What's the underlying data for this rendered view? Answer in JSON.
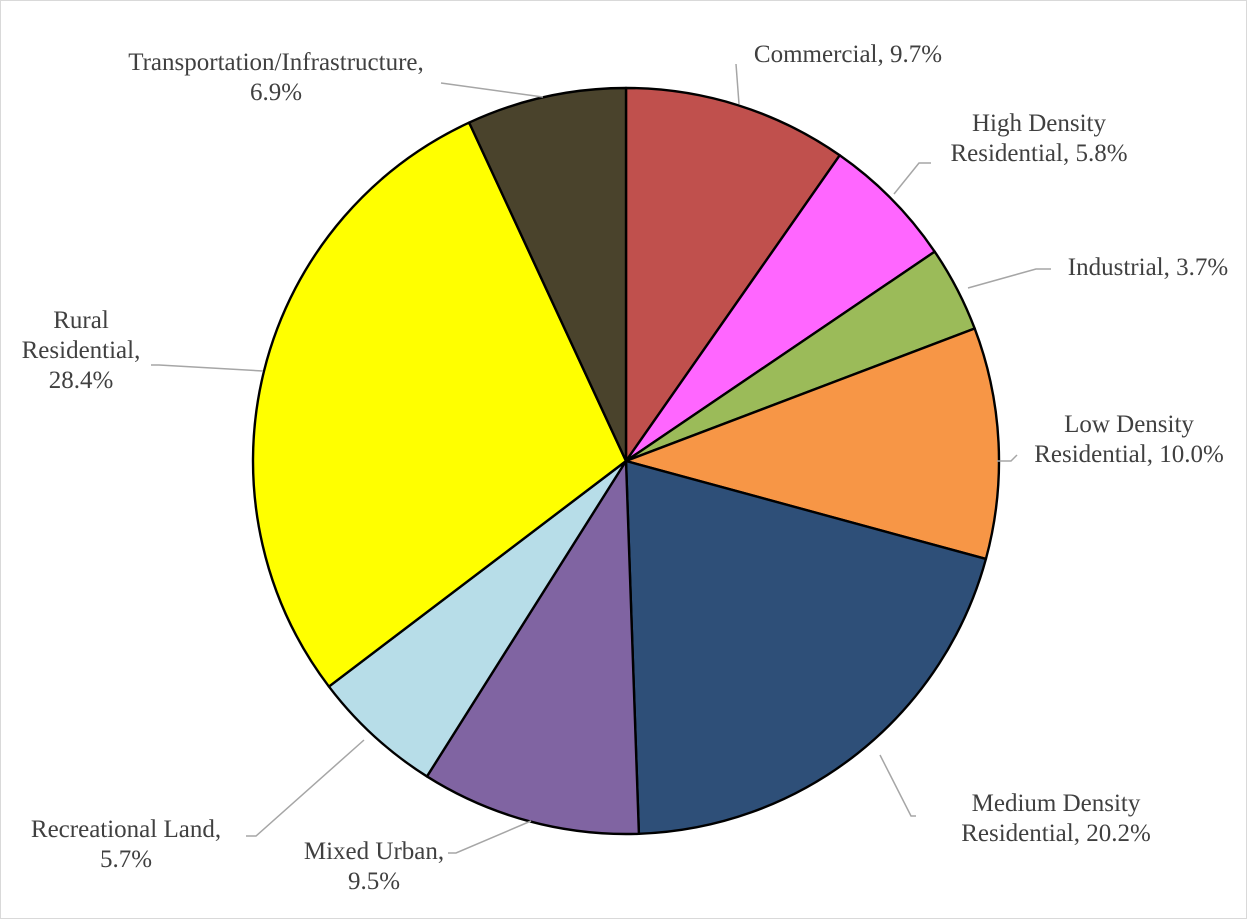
{
  "chart_data": {
    "type": "pie",
    "title": "",
    "slices": [
      {
        "name": "Commercial",
        "value": 9.7,
        "label": "Commercial, 9.7%",
        "color": "#C0504D"
      },
      {
        "name": "High Density Residential",
        "value": 5.8,
        "label": "High Density Residential, 5.8%",
        "color": "#FF66FF"
      },
      {
        "name": "Industrial",
        "value": 3.7,
        "label": "Industrial, 3.7%",
        "color": "#9BBB59"
      },
      {
        "name": "Low Density Residential",
        "value": 10.0,
        "label": "Low Density Residential, 10.0%",
        "color": "#F79646"
      },
      {
        "name": "Medium Density Residential",
        "value": 20.2,
        "label": "Medium Density Residential, 20.2%",
        "color": "#2E4F78"
      },
      {
        "name": "Mixed Urban",
        "value": 9.5,
        "label": "Mixed Urban, 9.5%",
        "color": "#8064A2"
      },
      {
        "name": "Recreational Land",
        "value": 5.7,
        "label": "Recreational Land, 5.7%",
        "color": "#B7DDE8"
      },
      {
        "name": "Rural Residential",
        "value": 28.4,
        "label": "Rural Residential, 28.4%",
        "color": "#FFFF00"
      },
      {
        "name": "Transportation/Infrastructure",
        "value": 6.9,
        "label": "Transportation/Infrastructure, 6.9%",
        "color": "#4A432C"
      }
    ],
    "label_lines": [
      [
        "Commercial, 9.7%"
      ],
      [
        "High Density",
        "Residential, 5.8%"
      ],
      [
        "Industrial, 3.7%"
      ],
      [
        "Low Density",
        "Residential, 10.0%"
      ],
      [
        "Medium Density",
        "Residential, 20.2%"
      ],
      [
        "Mixed Urban,",
        "9.5%"
      ],
      [
        "Recreational Land,",
        "5.7%"
      ],
      [
        "Rural",
        "Residential,",
        "28.4%"
      ],
      [
        "Transportation/Infrastructure,",
        "6.9%"
      ]
    ],
    "start_angle": "12 o'clock",
    "direction": "clockwise",
    "legend": "none",
    "data_labels": "outside-with-leader-lines"
  }
}
